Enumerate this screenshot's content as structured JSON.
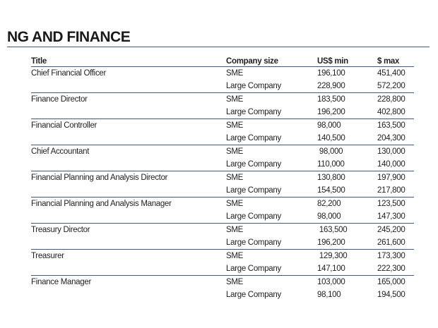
{
  "heading": "NG AND FINANCE",
  "columns": {
    "title": "Title",
    "size": "Company size",
    "min": "US$ min",
    "max": "$ max"
  },
  "rows": [
    {
      "title": "Chief Financial Officer",
      "entries": [
        {
          "size": "SME",
          "min": "196,100",
          "max": "451,400"
        },
        {
          "size": "Large Company",
          "min": "228,900",
          "max": "572,200"
        }
      ]
    },
    {
      "title": "Finance Director",
      "entries": [
        {
          "size": "SME",
          "min": "183,500",
          "max": "228,800"
        },
        {
          "size": "Large Company",
          "min": "196,200",
          "max": "402,800"
        }
      ]
    },
    {
      "title": "Financial Controller",
      "entries": [
        {
          "size": "SME",
          "min": "98,000",
          "max": "163,500"
        },
        {
          "size": "Large Company",
          "min": "140,500",
          "max": "204,300"
        }
      ]
    },
    {
      "title": "Chief Accountant",
      "entries": [
        {
          "size": "SME",
          "min": " 98,000",
          "max": "130,000"
        },
        {
          "size": "Large Company",
          "min": "110,000",
          "max": "140,000"
        }
      ]
    },
    {
      "title": "Financial Planning and Analysis Director",
      "entries": [
        {
          "size": "SME",
          "min": "130,800",
          "max": "197,900"
        },
        {
          "size": "Large Company",
          "min": "154,500",
          "max": "217,800"
        }
      ]
    },
    {
      "title": "Financial Planning and Analysis Manager",
      "entries": [
        {
          "size": "SME",
          "min": "82,200",
          "max": "123,500"
        },
        {
          "size": "Large Company",
          "min": "98,000",
          "max": "147,300"
        }
      ]
    },
    {
      "title": "Treasury Director",
      "entries": [
        {
          "size": "SME",
          "min": " 163,500",
          "max": "245,200"
        },
        {
          "size": "Large Company",
          "min": "196,200",
          "max": "261,600"
        }
      ]
    },
    {
      "title": "Treasurer",
      "entries": [
        {
          "size": "SME",
          "min": " 129,300",
          "max": "173,300"
        },
        {
          "size": "Large Company",
          "min": "147,100",
          "max": "222,300"
        }
      ]
    },
    {
      "title": "Finance Manager",
      "entries": [
        {
          "size": "SME",
          "min": "103,000",
          "max": "165,000"
        },
        {
          "size": "Large Company",
          "min": "98,100",
          "max": "194,500"
        }
      ]
    }
  ]
}
